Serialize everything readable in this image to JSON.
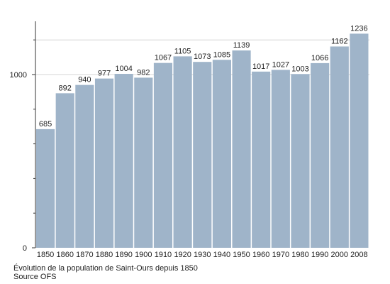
{
  "chart_data": {
    "type": "bar",
    "categories": [
      "1850",
      "1860",
      "1870",
      "1880",
      "1890",
      "1900",
      "1910",
      "1920",
      "1930",
      "1940",
      "1950",
      "1960",
      "1970",
      "1980",
      "1990",
      "2000",
      "2008"
    ],
    "values": [
      685,
      892,
      940,
      977,
      1004,
      982,
      1067,
      1105,
      1073,
      1085,
      1139,
      1017,
      1027,
      1003,
      1066,
      1162,
      1236
    ],
    "data_labels": [
      "685",
      "892",
      "940",
      "977",
      "1004",
      "982",
      "1067",
      "1105",
      "1073",
      "1085",
      "1139",
      "1017",
      "1027",
      "1003",
      "1066",
      "1162",
      "1236"
    ],
    "y_tick_labels": [
      {
        "value": 0,
        "label": "0"
      },
      {
        "value": 1000,
        "label": "1000"
      }
    ],
    "y_minor_ticks": [
      200,
      400,
      600,
      800,
      1200
    ],
    "ylim": [
      0,
      1300
    ],
    "grid": true,
    "bar_color": "#9fb4c9",
    "caption": "Évolution de la population de Saint-Ours depuis 1850",
    "source": "Source OFS"
  }
}
